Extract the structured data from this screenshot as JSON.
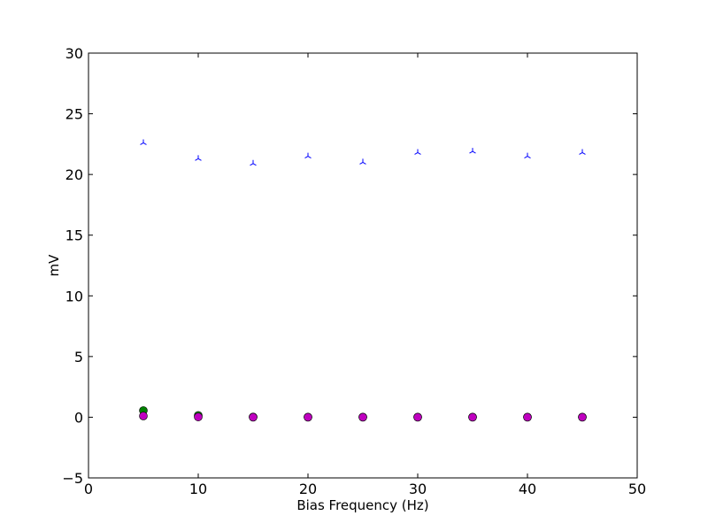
{
  "chart_data": {
    "type": "scatter",
    "title": "",
    "xlabel": "Bias Frequency (Hz)",
    "ylabel": "mV",
    "xlim": [
      0,
      50
    ],
    "ylim": [
      -5,
      30
    ],
    "xticks": [
      0,
      10,
      20,
      30,
      40,
      50
    ],
    "yticks": [
      -5,
      0,
      5,
      10,
      15,
      20,
      25,
      30
    ],
    "xtick_labels": [
      "0",
      "10",
      "20",
      "30",
      "40",
      "50"
    ],
    "ytick_labels": [
      "−5",
      "0",
      "5",
      "10",
      "15",
      "20",
      "25",
      "30"
    ],
    "grid": false,
    "legend": "none",
    "series": [
      {
        "marker": "tri_up",
        "color": "#0000ff",
        "x": [
          5,
          10,
          15,
          20,
          25,
          30,
          35,
          40,
          45
        ],
        "y": [
          22.6,
          21.3,
          20.9,
          21.5,
          21.0,
          21.8,
          21.9,
          21.5,
          21.8
        ]
      },
      {
        "marker": "circle",
        "color": "#008000",
        "x": [
          5,
          10,
          15,
          20,
          25,
          30,
          35,
          40,
          45
        ],
        "y": [
          0.55,
          0.15,
          0.02,
          0.01,
          0.01,
          0.01,
          0.01,
          0.01,
          0.01
        ]
      },
      {
        "marker": "circle",
        "color": "#bf00bf",
        "x": [
          5,
          10,
          15,
          20,
          25,
          30,
          35,
          40,
          45
        ],
        "y": [
          0.1,
          0.02,
          0.0,
          0.0,
          0.0,
          0.0,
          0.0,
          0.0,
          0.0
        ]
      }
    ]
  }
}
